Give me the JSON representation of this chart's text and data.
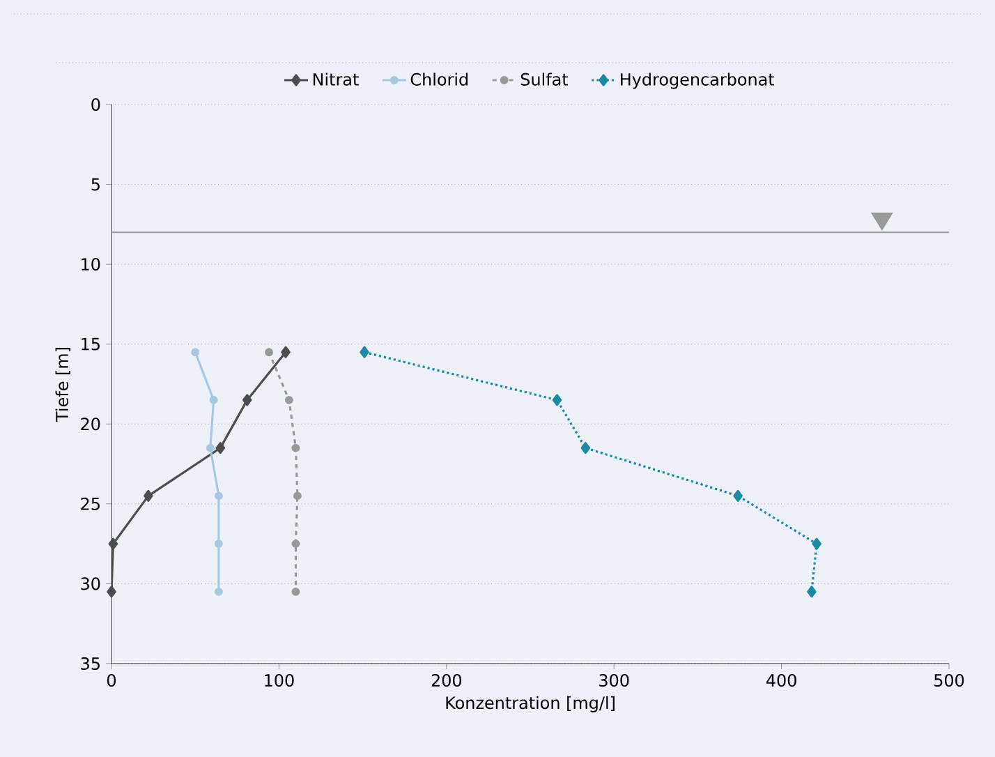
{
  "chart_data": {
    "type": "line",
    "xlabel": "Konzentration [mg/l]",
    "ylabel": "Tiefe [m]",
    "xlim": [
      0,
      500
    ],
    "xticks": [
      0,
      100,
      200,
      300,
      400,
      500
    ],
    "ylim": [
      35,
      0
    ],
    "yticks": [
      0,
      5,
      10,
      15,
      20,
      25,
      30,
      35
    ],
    "grid": "y",
    "legend": "top",
    "ref_lines": [
      {
        "axis": "y",
        "value": 8,
        "color": "#999999",
        "line_style": "solid"
      }
    ],
    "series": [
      {
        "name": "Nitrat",
        "color": "#4d4d4d",
        "marker": "diamond",
        "line_style": "solid",
        "x": [
          104,
          81,
          65,
          22,
          1,
          0
        ],
        "values": [
          15.5,
          18.5,
          21.5,
          24.5,
          27.5,
          30.5
        ]
      },
      {
        "name": "Chlorid",
        "color": "#a8c8e0",
        "marker": "circle",
        "line_style": "solid",
        "x": [
          50,
          61,
          59,
          64,
          64,
          64
        ],
        "values": [
          15.5,
          18.5,
          21.5,
          24.5,
          27.5,
          30.5
        ]
      },
      {
        "name": "Sulfat",
        "color": "#999999",
        "marker": "circle",
        "line_style": "dashed",
        "x": [
          94,
          106,
          110,
          111,
          110,
          110
        ],
        "values": [
          15.5,
          18.5,
          21.5,
          24.5,
          27.5,
          30.5
        ]
      },
      {
        "name": "Hydrogencarbonat",
        "color": "#1a8aa5",
        "marker": "diamond",
        "line_style": "dotted",
        "x": [
          151,
          266,
          283,
          374,
          421,
          418
        ],
        "values": [
          15.5,
          18.5,
          21.5,
          24.5,
          27.5,
          30.5
        ]
      }
    ]
  }
}
